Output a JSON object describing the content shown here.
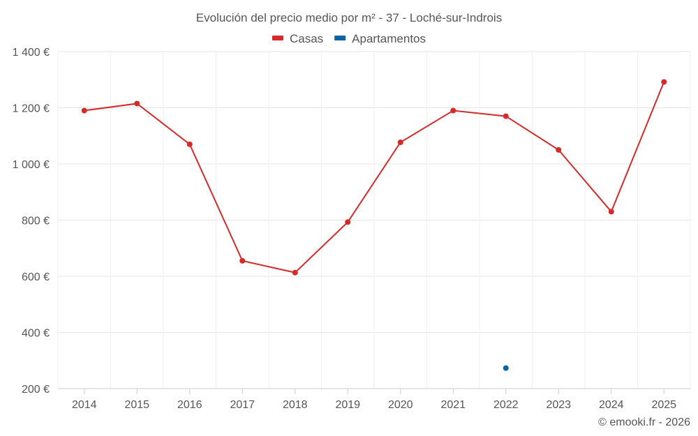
{
  "chart_data": {
    "type": "line",
    "title": "Evolución del precio medio por m² - 37 - Loché-sur-Indrois",
    "categories": [
      "2014",
      "2015",
      "2016",
      "2017",
      "2018",
      "2019",
      "2020",
      "2021",
      "2022",
      "2023",
      "2024",
      "2025"
    ],
    "series": [
      {
        "name": "Casas",
        "color": "#d42a2a",
        "values": [
          1190,
          1215,
          1070,
          655,
          613,
          793,
          1077,
          1190,
          1170,
          1050,
          830,
          1292
        ]
      },
      {
        "name": "Apartamentos",
        "color": "#0e64a0",
        "values": [
          null,
          null,
          null,
          null,
          null,
          null,
          null,
          null,
          273,
          null,
          null,
          null
        ]
      }
    ],
    "ylim": [
      200,
      1400
    ],
    "yticks": [
      200,
      400,
      600,
      800,
      1000,
      1200,
      1400
    ],
    "ytick_labels": [
      "200 €",
      "400 €",
      "600 €",
      "800 €",
      "1 000 €",
      "1 200 €",
      "1 400 €"
    ],
    "xlabel": "",
    "ylabel": "",
    "grid": true,
    "legend_position": "top-center",
    "credit": "© emooki.fr - 2026"
  }
}
